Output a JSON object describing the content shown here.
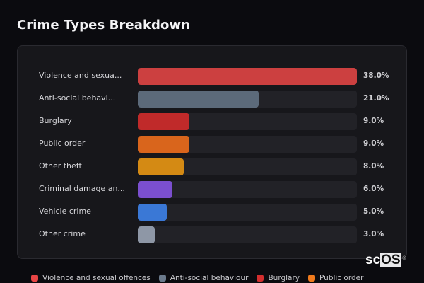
{
  "header": {
    "title": "Crime Types Breakdown"
  },
  "chart_data": {
    "type": "bar",
    "orientation": "horizontal",
    "title": "Crime Types Breakdown",
    "xlabel": "",
    "ylabel": "",
    "categories": [
      "Violence and sexual offences",
      "Anti-social behaviour",
      "Burglary",
      "Public order",
      "Other theft",
      "Criminal damage and arson",
      "Vehicle crime",
      "Other crime"
    ],
    "display_labels": [
      "Violence and sexua...",
      "Anti-social behavi...",
      "Burglary",
      "Public order",
      "Other theft",
      "Criminal damage an...",
      "Vehicle crime",
      "Other crime"
    ],
    "values": [
      38.0,
      21.0,
      9.0,
      9.0,
      8.0,
      6.0,
      5.0,
      3.0
    ],
    "value_labels": [
      "38.0%",
      "21.0%",
      "9.0%",
      "9.0%",
      "8.0%",
      "6.0%",
      "5.0%",
      "3.0%"
    ],
    "colors": [
      "#cc4040",
      "#5c6a7a",
      "#c02a2a",
      "#d9651c",
      "#d48a14",
      "#7b4fcf",
      "#3a78d6",
      "#8e97a6"
    ],
    "unit": "%",
    "xlim": [
      0,
      38
    ],
    "grid": false,
    "legend_position": "bottom"
  },
  "rows": [
    {
      "label": "Violence and sexua...",
      "value": "38.0%",
      "pct": 38.0,
      "color": "#cc4040"
    },
    {
      "label": "Anti-social behavi...",
      "value": "21.0%",
      "pct": 21.0,
      "color": "#5c6a7a"
    },
    {
      "label": "Burglary",
      "value": "9.0%",
      "pct": 9.0,
      "color": "#c02a2a"
    },
    {
      "label": "Public order",
      "value": "9.0%",
      "pct": 9.0,
      "color": "#d9651c"
    },
    {
      "label": "Other theft",
      "value": "8.0%",
      "pct": 8.0,
      "color": "#d48a14"
    },
    {
      "label": "Criminal damage an...",
      "value": "6.0%",
      "pct": 6.0,
      "color": "#7b4fcf"
    },
    {
      "label": "Vehicle crime",
      "value": "5.0%",
      "pct": 5.0,
      "color": "#3a78d6"
    },
    {
      "label": "Other crime",
      "value": "3.0%",
      "pct": 3.0,
      "color": "#8e97a6"
    }
  ],
  "legend": [
    {
      "label": "Violence and sexual offences",
      "color": "#e84545"
    },
    {
      "label": "Anti-social behaviour",
      "color": "#6b7a8c"
    },
    {
      "label": "Burglary",
      "color": "#d42e2e"
    },
    {
      "label": "Public order",
      "color": "#f07a1c"
    }
  ],
  "watermark": {
    "prefix": "sc",
    "highlight": "OS",
    "mark": "®"
  }
}
